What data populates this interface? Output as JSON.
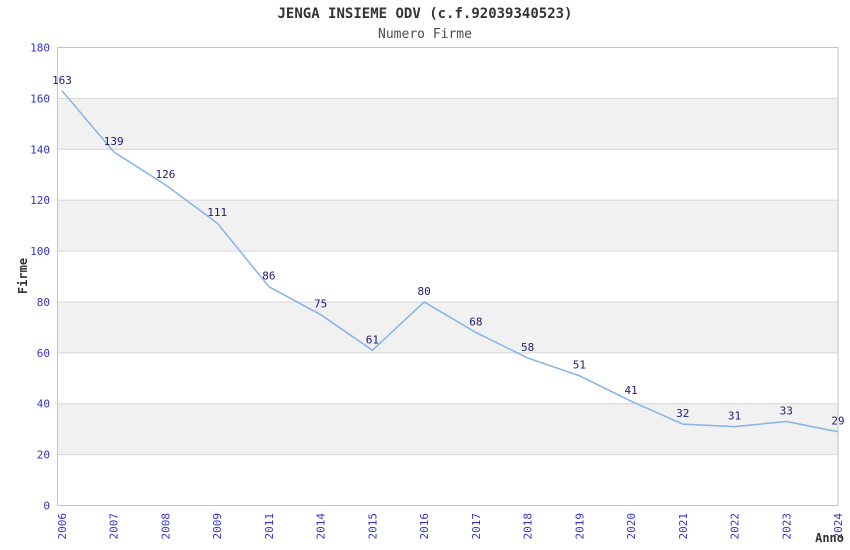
{
  "chart_data": {
    "type": "line",
    "title": "JENGA INSIEME ODV (c.f.92039340523)",
    "subtitle": "Numero Firme",
    "xlabel": "Anno",
    "ylabel": "Firme",
    "categories": [
      "2006",
      "2007",
      "2008",
      "2009",
      "2011",
      "2014",
      "2015",
      "2016",
      "2017",
      "2018",
      "2019",
      "2020",
      "2021",
      "2022",
      "2023",
      "2024"
    ],
    "values": [
      163,
      139,
      126,
      111,
      86,
      75,
      61,
      80,
      68,
      58,
      51,
      41,
      32,
      31,
      33,
      29
    ],
    "ylim": [
      0,
      180
    ],
    "ytick_step": 20,
    "grid": true,
    "legend": "none",
    "band_ranges": [
      [
        20,
        40
      ],
      [
        60,
        80
      ],
      [
        100,
        120
      ],
      [
        140,
        160
      ]
    ],
    "colors": {
      "line": "#85b3e6",
      "data_label": "#1c1c70",
      "tick_label": "#3232cd",
      "axis_title": "#333333",
      "band": "#f1f1f1",
      "grid": "#d6d6d6",
      "border": "#c4c4c4",
      "background": "#ffffff"
    }
  }
}
